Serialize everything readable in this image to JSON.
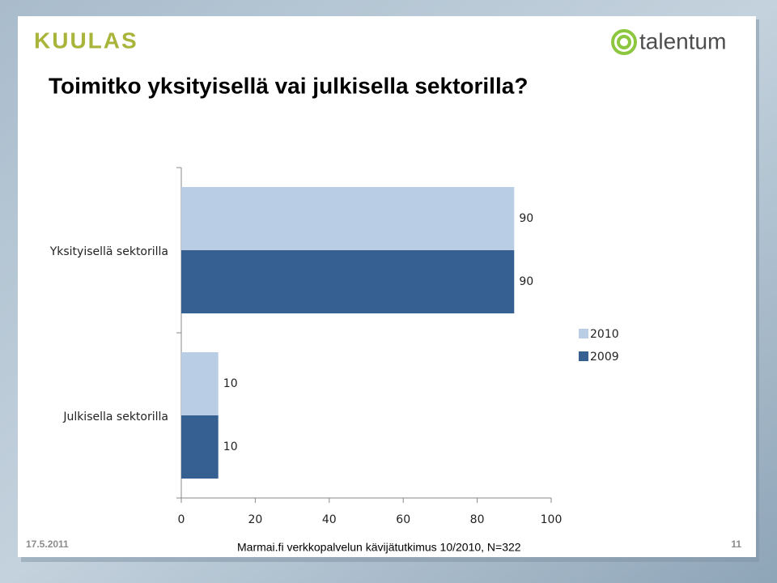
{
  "slide": {
    "logo_left": "KUULAS",
    "logo_right": "talentum",
    "date": "17.5.2011",
    "footer": "Marmai.fi verkkopalvelun kävijätutkimus 10/2010, N=322",
    "page_number": "11"
  },
  "chart_data": {
    "type": "hbar",
    "title": "Toimitko yksityisellä vai julkisella sektorilla?",
    "categories": [
      "Yksityisellä sektorilla",
      "Julkisella sektorilla"
    ],
    "series": [
      {
        "name": "2010",
        "color": "#b9cde5",
        "values": [
          90,
          10
        ]
      },
      {
        "name": "2009",
        "color": "#376092",
        "values": [
          90,
          10
        ]
      }
    ],
    "xlim": [
      0,
      100
    ],
    "xticks": [
      0,
      20,
      40,
      60,
      80,
      100
    ],
    "grid": false,
    "legend": "right"
  }
}
